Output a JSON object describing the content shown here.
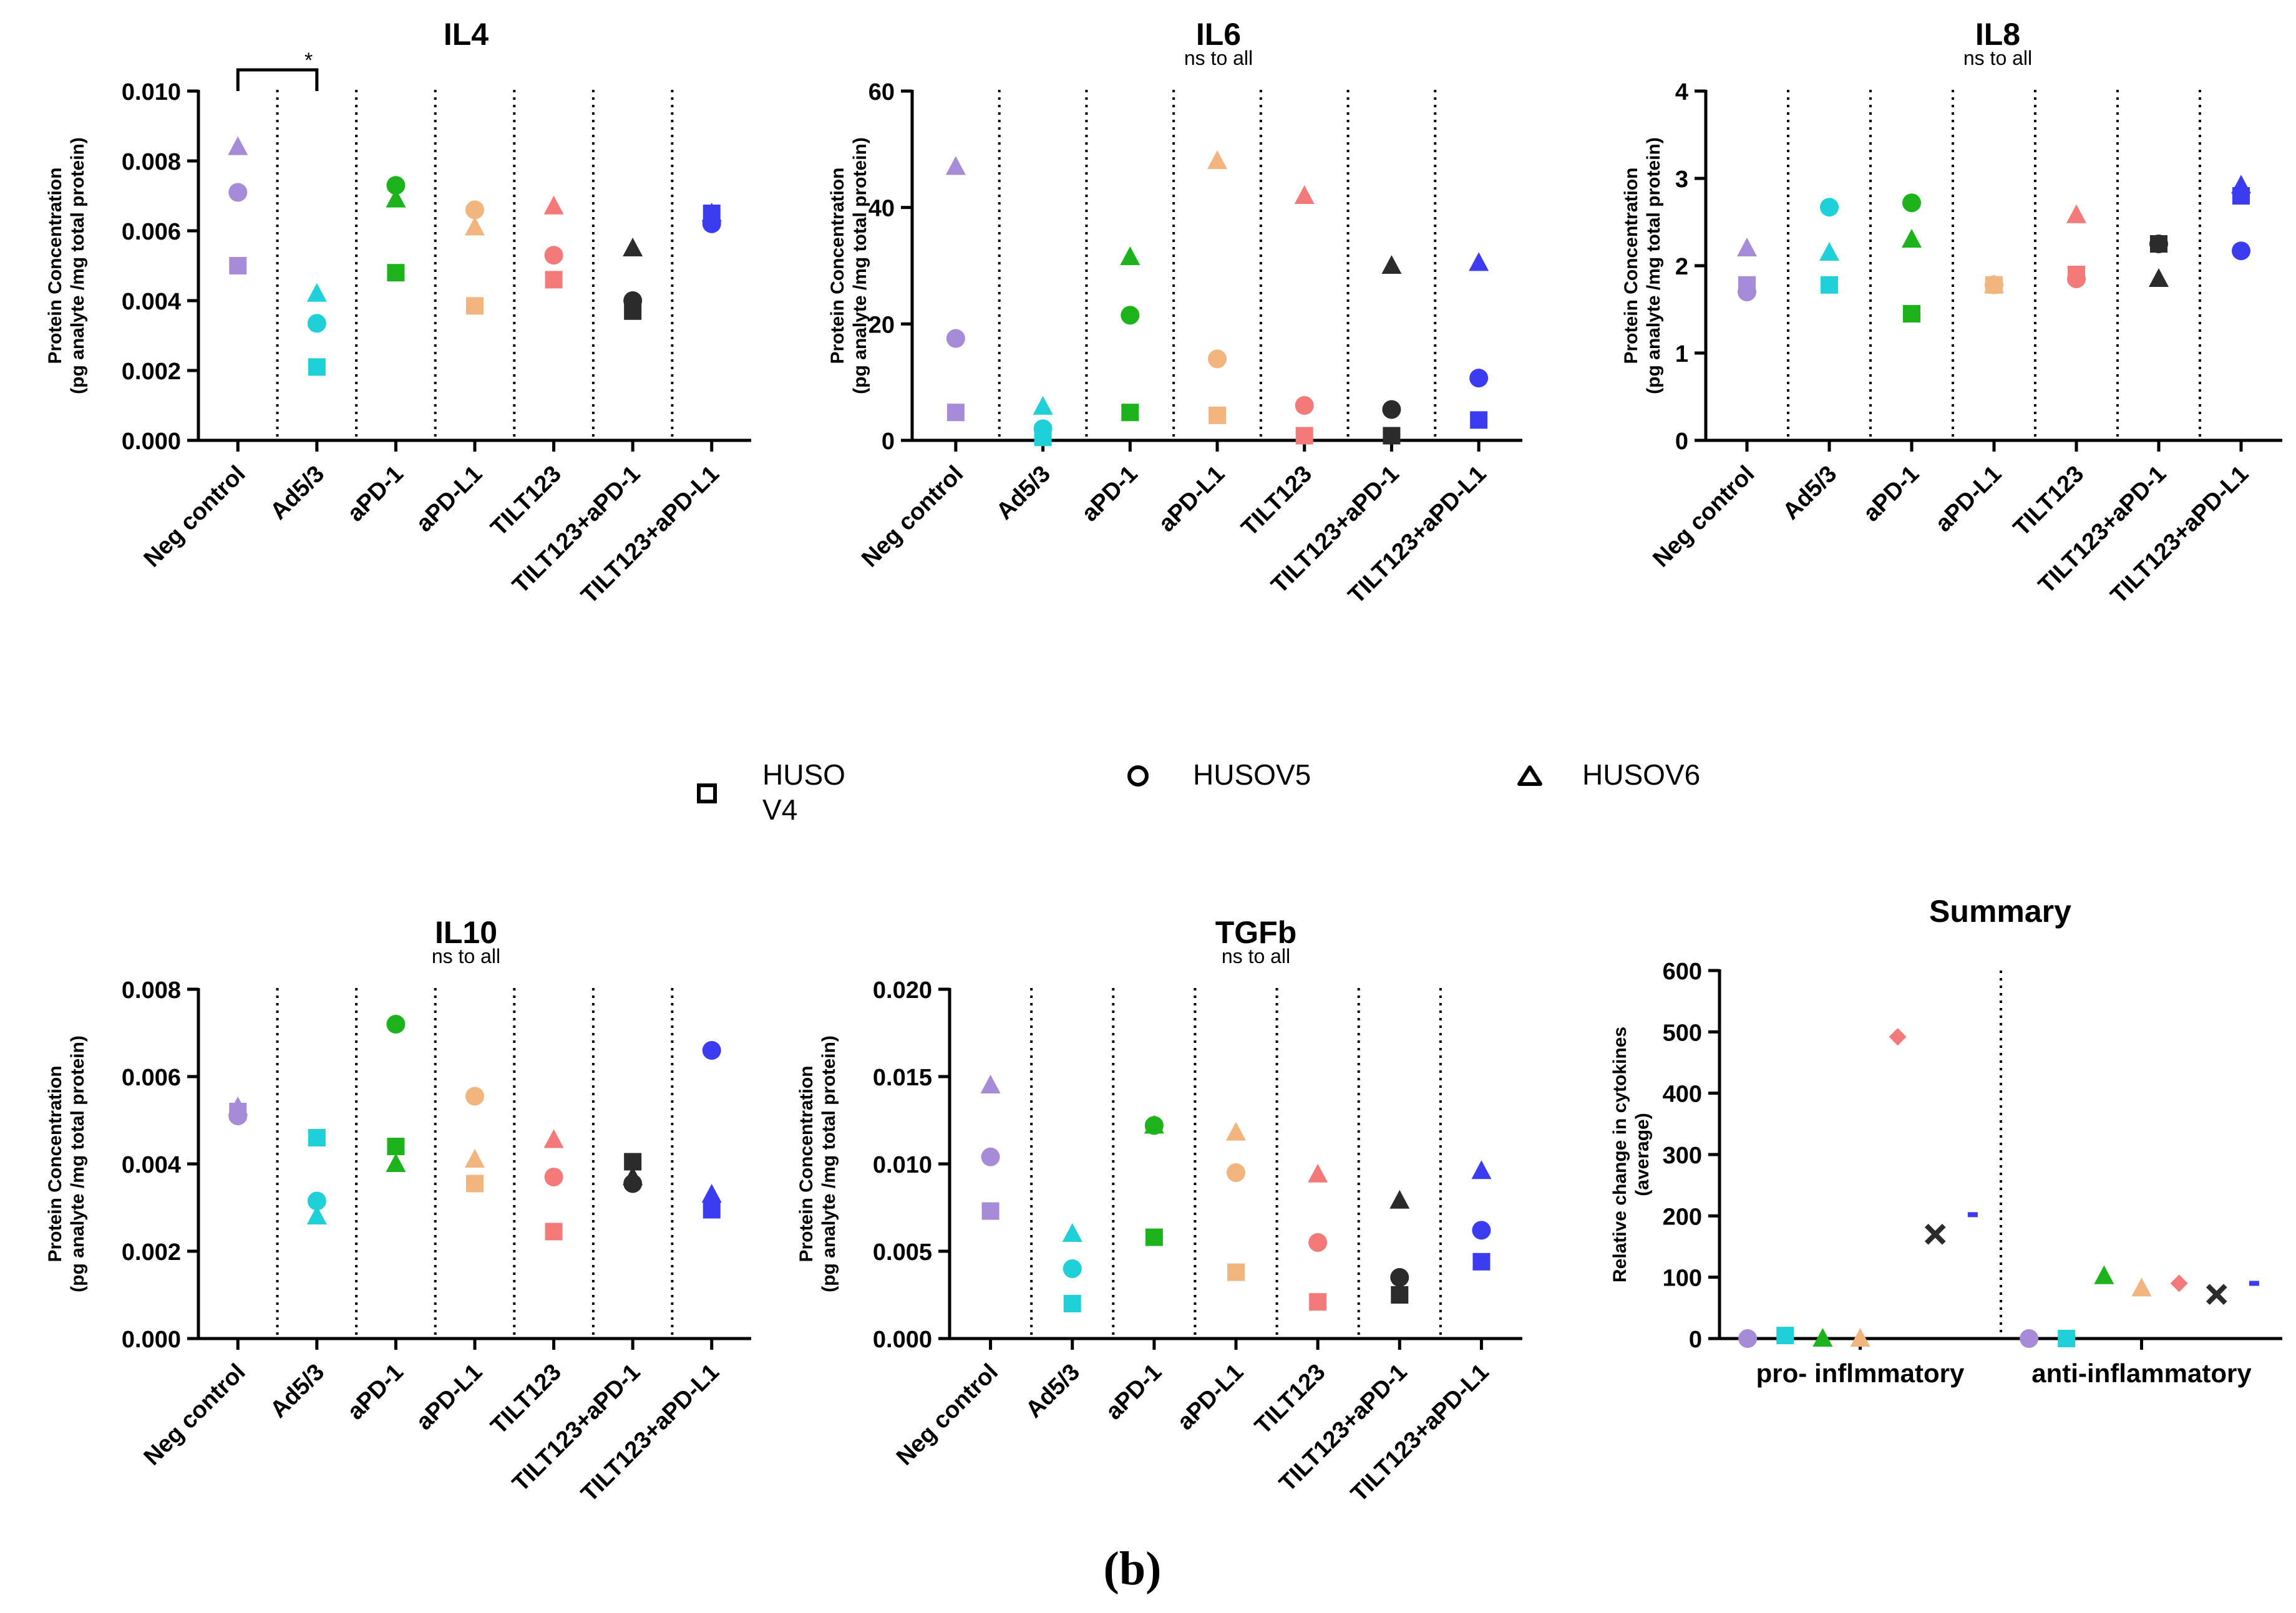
{
  "figure": {
    "panel_label": "(b)"
  },
  "legend": [
    {
      "marker": "square",
      "label_line1": "HUSO",
      "label_line2": "V4"
    },
    {
      "marker": "circle",
      "label_line1": "HUSOV5",
      "label_line2": ""
    },
    {
      "marker": "triangle",
      "label_line1": "HUSOV6",
      "label_line2": ""
    }
  ],
  "colors": {
    "Neg control": "#a58bd8",
    "Ad5/3": "#1fd0d8",
    "aPD-1": "#1db31d",
    "aPD-L1": "#f2b57e",
    "TILT123": "#f47a7a",
    "TILT123+aPD-1": "#2b2b2b",
    "TILT123+aPD-L1": "#3b3bf0"
  },
  "chart_data": [
    {
      "id": "IL4",
      "type": "scatter",
      "title": "IL4",
      "subtitle": "",
      "ylabel": "Protein Concentration",
      "ylabel_sub": "(pg analyte /mg total protein)",
      "ylim": [
        0,
        0.01
      ],
      "yticks": [
        "0.000",
        "0.002",
        "0.004",
        "0.006",
        "0.008",
        "0.010"
      ],
      "categories": [
        "Neg control",
        "Ad5/3",
        "aPD-1",
        "aPD-L1",
        "TILT123",
        "TILT123+aPD-1",
        "TILT123+aPD-L1"
      ],
      "series": [
        {
          "name": "HUSOV4",
          "marker": "square",
          "values": [
            0.005,
            0.0021,
            0.0048,
            0.00385,
            0.0046,
            0.0037,
            0.0065
          ]
        },
        {
          "name": "HUSOV5",
          "marker": "circle",
          "values": [
            0.0071,
            0.00335,
            0.0073,
            0.0066,
            0.0053,
            0.004,
            0.0062
          ]
        },
        {
          "name": "HUSOV6",
          "marker": "triangle",
          "values": [
            0.0084,
            0.0042,
            0.0069,
            0.0061,
            0.0067,
            0.0055,
            0.0065
          ]
        }
      ],
      "significance": {
        "from": 0,
        "to": 1,
        "label": "*"
      }
    },
    {
      "id": "IL6",
      "type": "scatter",
      "title": "IL6",
      "subtitle": "ns to all",
      "ylabel": "Protein Concentration",
      "ylabel_sub": "(pg analyte /mg total protein)",
      "ylim": [
        0,
        60
      ],
      "yticks": [
        "0",
        "20",
        "40",
        "60"
      ],
      "categories": [
        "Neg control",
        "Ad5/3",
        "aPD-1",
        "aPD-L1",
        "TILT123",
        "TILT123+aPD-1",
        "TILT123+aPD-L1"
      ],
      "series": [
        {
          "name": "HUSOV4",
          "marker": "square",
          "values": [
            4.8,
            0.5,
            4.8,
            4.3,
            0.8,
            0.8,
            3.5
          ]
        },
        {
          "name": "HUSOV5",
          "marker": "circle",
          "values": [
            17.5,
            2,
            21.5,
            14,
            6,
            5.3,
            10.7
          ]
        },
        {
          "name": "HUSOV6",
          "marker": "triangle",
          "values": [
            47,
            5.8,
            31.5,
            48,
            42,
            30,
            30.5
          ]
        }
      ]
    },
    {
      "id": "IL8",
      "type": "scatter",
      "title": "IL8",
      "subtitle": "ns to all",
      "ylabel": "Protein Concentration",
      "ylabel_sub": "(pg analyte /mg total protein)",
      "ylim": [
        0,
        4
      ],
      "yticks": [
        "0",
        "1",
        "2",
        "3",
        "4"
      ],
      "categories": [
        "Neg control",
        "Ad5/3",
        "aPD-1",
        "aPD-L1",
        "TILT123",
        "TILT123+aPD-1",
        "TILT123+aPD-L1"
      ],
      "series": [
        {
          "name": "HUSOV4",
          "marker": "square",
          "values": [
            1.78,
            1.78,
            1.45,
            1.78,
            1.9,
            2.25,
            2.8
          ]
        },
        {
          "name": "HUSOV5",
          "marker": "circle",
          "values": [
            1.7,
            2.67,
            2.72,
            1.78,
            1.85,
            2.25,
            2.17
          ]
        },
        {
          "name": "HUSOV6",
          "marker": "triangle",
          "values": [
            2.2,
            2.15,
            2.3,
            1.78,
            2.58,
            1.85,
            2.92
          ]
        }
      ]
    },
    {
      "id": "IL10",
      "type": "scatter",
      "title": "IL10",
      "subtitle": "ns to all",
      "ylabel": "Protein Concentration",
      "ylabel_sub": "(pg analyte /mg total protein)",
      "ylim": [
        0,
        0.008
      ],
      "yticks": [
        "0.000",
        "0.002",
        "0.004",
        "0.006",
        "0.008"
      ],
      "categories": [
        "Neg control",
        "Ad5/3",
        "aPD-1",
        "aPD-L1",
        "TILT123",
        "TILT123+aPD-1",
        "TILT123+aPD-L1"
      ],
      "series": [
        {
          "name": "HUSOV4",
          "marker": "square",
          "values": [
            0.0052,
            0.0046,
            0.0044,
            0.00355,
            0.00245,
            0.00405,
            0.00295
          ]
        },
        {
          "name": "HUSOV5",
          "marker": "circle",
          "values": [
            0.0051,
            0.00315,
            0.0072,
            0.00555,
            0.0037,
            0.00355,
            0.0066
          ]
        },
        {
          "name": "HUSOV6",
          "marker": "triangle",
          "values": [
            0.0053,
            0.0028,
            0.004,
            0.0041,
            0.00455,
            0.0037,
            0.0033
          ]
        }
      ]
    },
    {
      "id": "TGFb",
      "type": "scatter",
      "title": "TGFb",
      "subtitle": "ns to all",
      "ylabel": "Protein Concentration",
      "ylabel_sub": "(pg analyte /mg total protein)",
      "ylim": [
        0,
        0.02
      ],
      "yticks": [
        "0.000",
        "0.005",
        "0.010",
        "0.015",
        "0.020"
      ],
      "categories": [
        "Neg control",
        "Ad5/3",
        "aPD-1",
        "aPD-L1",
        "TILT123",
        "TILT123+aPD-1",
        "TILT123+aPD-L1"
      ],
      "series": [
        {
          "name": "HUSOV4",
          "marker": "square",
          "values": [
            0.0073,
            0.002,
            0.0058,
            0.0038,
            0.0021,
            0.0025,
            0.0044
          ]
        },
        {
          "name": "HUSOV5",
          "marker": "circle",
          "values": [
            0.0104,
            0.004,
            0.0122,
            0.0095,
            0.0055,
            0.0035,
            0.0062
          ]
        },
        {
          "name": "HUSOV6",
          "marker": "triangle",
          "values": [
            0.0145,
            0.006,
            0.0122,
            0.0118,
            0.0094,
            0.0079,
            0.0096
          ]
        }
      ]
    },
    {
      "id": "Summary",
      "type": "scatter",
      "title": "Summary",
      "subtitle": "",
      "ylabel": "Relative change in cytokines",
      "ylabel_sub": "(average)",
      "ylim": [
        0,
        600
      ],
      "yticks": [
        "0",
        "100",
        "200",
        "300",
        "400",
        "500",
        "600"
      ],
      "groups": [
        "pro- inflmmatory",
        "anti-inflammatory"
      ],
      "series": [
        {
          "name": "Neg control",
          "marker": "circle",
          "values": [
            0,
            0
          ]
        },
        {
          "name": "Ad5/3",
          "marker": "square",
          "values": [
            5,
            0
          ]
        },
        {
          "name": "aPD-1",
          "marker": "triangle",
          "values": [
            0,
            102
          ]
        },
        {
          "name": "aPD-L1",
          "marker": "triangle",
          "values": [
            -5,
            82
          ]
        },
        {
          "name": "TILT123",
          "marker": "diamond",
          "values": [
            492,
            90
          ]
        },
        {
          "name": "TILT123+aPD-1",
          "marker": "cross",
          "values": [
            170,
            72
          ]
        },
        {
          "name": "TILT123+aPD-L1",
          "marker": "dash",
          "values": [
            202,
            90
          ]
        }
      ]
    }
  ]
}
